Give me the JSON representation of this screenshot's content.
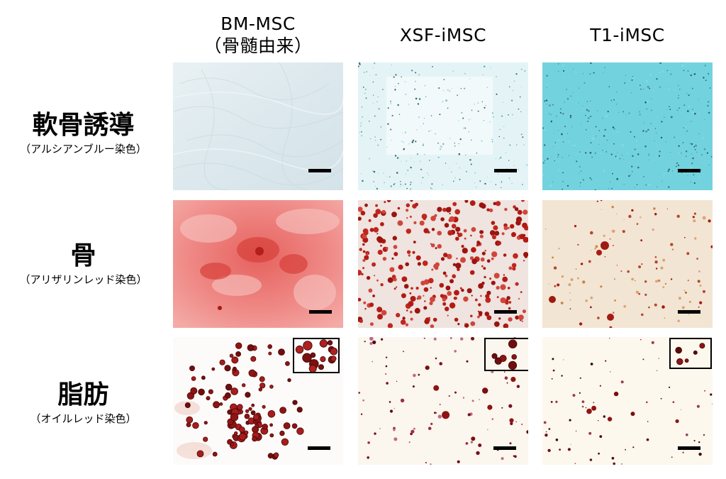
{
  "columns": [
    {
      "name": "BM-MSC",
      "sub": "（骨髄由来）"
    },
    {
      "name": "XSF-iMSC",
      "sub": ""
    },
    {
      "name": "T1-iMSC",
      "sub": ""
    }
  ],
  "rows": [
    {
      "name": "軟骨誘導",
      "stain": "（アルシアンブルー染色）"
    },
    {
      "name": "骨",
      "stain": "（アリザリンレッド染色）"
    },
    {
      "name": "脂肪",
      "stain": "（オイルレッド染色）"
    }
  ],
  "colors": {
    "alcian_blue_light": "#dfe9ee",
    "alcian_blue_medium": "#dff4f6",
    "alcian_blue_strong": "#6fd1dc",
    "alizarin_diffuse": "#ef8a88",
    "alizarin_nodule": "#b21a14",
    "oil_red": "#8e1414",
    "scale_bar": "#000000",
    "inset_border": "#000000"
  }
}
